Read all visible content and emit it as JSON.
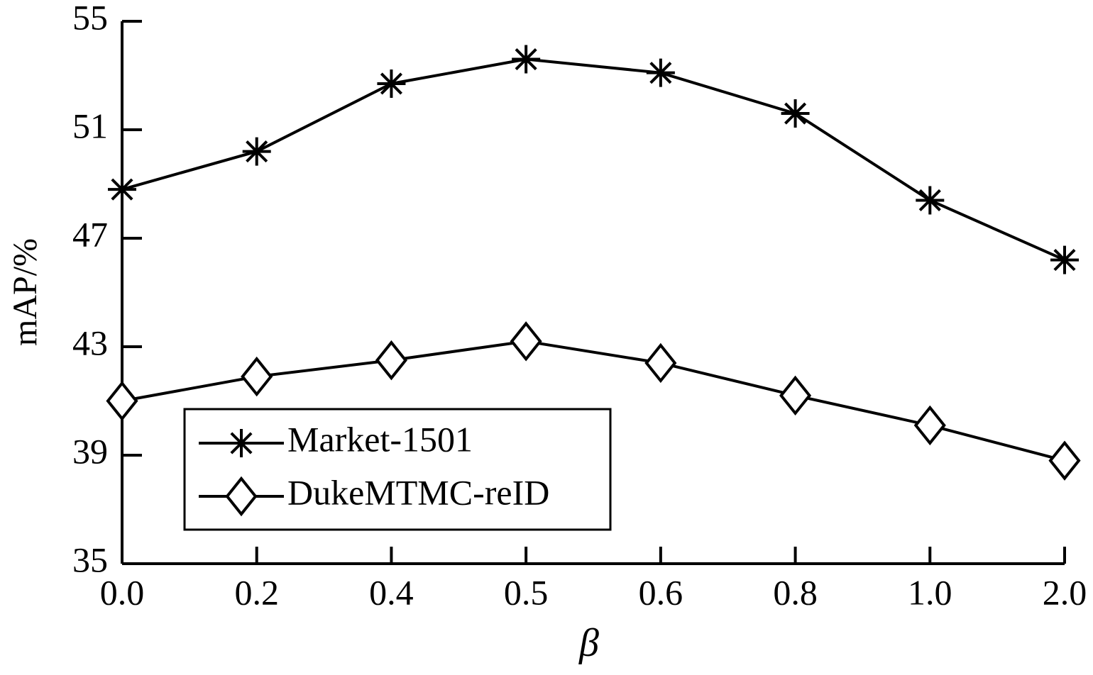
{
  "chart_data": {
    "type": "line",
    "x_label": "β",
    "y_label": "mAP/%",
    "categories": [
      "0.0",
      "0.2",
      "0.4",
      "0.5",
      "0.6",
      "0.8",
      "1.0",
      "2.0"
    ],
    "series": [
      {
        "name": "Market-1501",
        "color": "#000000",
        "marker": "asterisk",
        "values": [
          48.8,
          50.2,
          52.7,
          53.6,
          53.1,
          51.6,
          48.4,
          46.2
        ]
      },
      {
        "name": "DukeMTMC-reID",
        "color": "#000000",
        "marker": "diamond",
        "values": [
          41.0,
          41.9,
          42.5,
          43.2,
          42.4,
          41.2,
          40.1,
          38.8
        ]
      }
    ],
    "ylim": [
      35,
      55
    ],
    "yticks": [
      35,
      39,
      43,
      47,
      51,
      55
    ],
    "grid": false,
    "legend": "lower left"
  }
}
